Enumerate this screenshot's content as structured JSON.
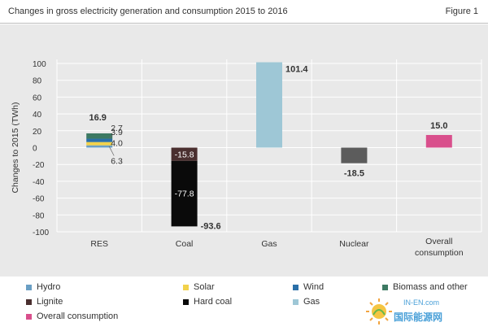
{
  "header": {
    "title": "Changes in gross electricity generation and consumption 2015 to 2016",
    "figure_label": "Figure 1"
  },
  "colors": {
    "hydro": "#6a9fc4",
    "solar": "#f2d24b",
    "wind": "#2a6fa8",
    "biomass": "#3d7a63",
    "lignite": "#4a2f2f",
    "hard_coal": "#0a0a0a",
    "gas": "#9ec7d6",
    "nuclear": "#5c5c5c",
    "overall": "#d94f8c",
    "grid": "#ffffff",
    "panel": "#e9e9e9"
  },
  "chart_data": {
    "type": "bar",
    "stacked": true,
    "categories": [
      "RES",
      "Coal",
      "Gas",
      "Nuclear",
      "Overall consumption"
    ],
    "ylabel": "Changes to 2015 (TWh)",
    "ylim": [
      -100,
      100
    ],
    "yticks": [
      "100",
      "80",
      "60",
      "40",
      "20",
      "0",
      "-20",
      "-40",
      "-60",
      "-80",
      "-100"
    ],
    "grid": true,
    "legend_position": "bottom",
    "series": [
      {
        "name": "Hydro",
        "color_key": "hydro",
        "values": [
          2.7,
          0,
          0,
          0,
          0
        ]
      },
      {
        "name": "Solar",
        "color_key": "solar",
        "values": [
          3.9,
          0,
          0,
          0,
          0
        ]
      },
      {
        "name": "Wind",
        "color_key": "wind",
        "values": [
          4.0,
          0,
          0,
          0,
          0
        ]
      },
      {
        "name": "Biomass and other",
        "color_key": "biomass",
        "values": [
          6.3,
          0,
          0,
          0,
          0
        ]
      },
      {
        "name": "Lignite",
        "color_key": "lignite",
        "values": [
          0,
          -15.8,
          0,
          0,
          0
        ]
      },
      {
        "name": "Hard coal",
        "color_key": "hard_coal",
        "values": [
          0,
          -77.8,
          0,
          0,
          0
        ]
      },
      {
        "name": "Gas",
        "color_key": "gas",
        "values": [
          0,
          0,
          101.4,
          0,
          0
        ]
      },
      {
        "name": "Nuclear",
        "color_key": "nuclear",
        "values": [
          0,
          0,
          0,
          -18.5,
          0
        ]
      },
      {
        "name": "Overall consumption",
        "color_key": "overall",
        "values": [
          0,
          0,
          0,
          0,
          15.0
        ]
      }
    ],
    "labels": {
      "res_total": "16.9",
      "res_hydro": "2.7",
      "res_solar": "3.9",
      "res_wind": "4.0",
      "res_biomass": "6.3",
      "coal_lignite": "-15.8",
      "coal_hard": "-77.8",
      "coal_total": "-93.6",
      "gas": "101.4",
      "nuclear": "-18.5",
      "overall": "15.0"
    }
  },
  "legend": {
    "items": [
      {
        "label": "Hydro",
        "color_key": "hydro"
      },
      {
        "label": "Solar",
        "color_key": "solar"
      },
      {
        "label": "Wind",
        "color_key": "wind"
      },
      {
        "label": "Biomass and other",
        "color_key": "biomass"
      },
      {
        "label": "Lignite",
        "color_key": "lignite"
      },
      {
        "label": "Hard coal",
        "color_key": "hard_coal"
      },
      {
        "label": "Gas",
        "color_key": "gas"
      },
      {
        "label": "Overall consumption",
        "color_key": "overall"
      }
    ]
  },
  "watermark": {
    "top_text": "IN-EN.com",
    "bottom_text": "国际能源网"
  }
}
